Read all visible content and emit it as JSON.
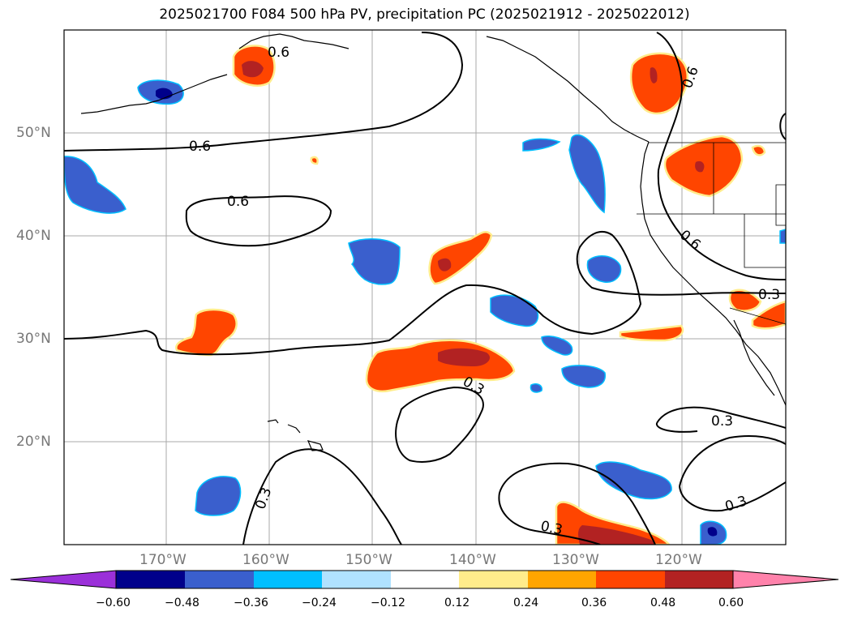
{
  "title": "2025021700 F084 500 hPa PV, precipitation PC (2025021912 - 2025022012)",
  "map": {
    "lon_range": [
      -180,
      -110
    ],
    "lat_range": [
      10,
      60
    ],
    "lat_ticks": [
      "20°N",
      "30°N",
      "40°N",
      "50°N"
    ],
    "lon_ticks": [
      "170°W",
      "160°W",
      "150°W",
      "140°W",
      "130°W",
      "120°W"
    ],
    "gridlines": true
  },
  "contours": {
    "labels": [
      "0.6",
      "0.6",
      "0.6",
      "0.6",
      "0.6",
      "0.3",
      "0.3",
      "0.3",
      "0.3",
      "0.3"
    ]
  },
  "colorbar": {
    "ticks": [
      "−0.60",
      "−0.48",
      "−0.36",
      "−0.24",
      "−0.12",
      "0.12",
      "0.24",
      "0.36",
      "0.48",
      "0.60"
    ],
    "colors": [
      "#9b30d9",
      "#00008b",
      "#3a5fcd",
      "#00bfff",
      "#b0e2ff",
      "#ffffff",
      "#ffec8b",
      "#ffa500",
      "#ff4500",
      "#b22222",
      "#ff82ab"
    ]
  }
}
